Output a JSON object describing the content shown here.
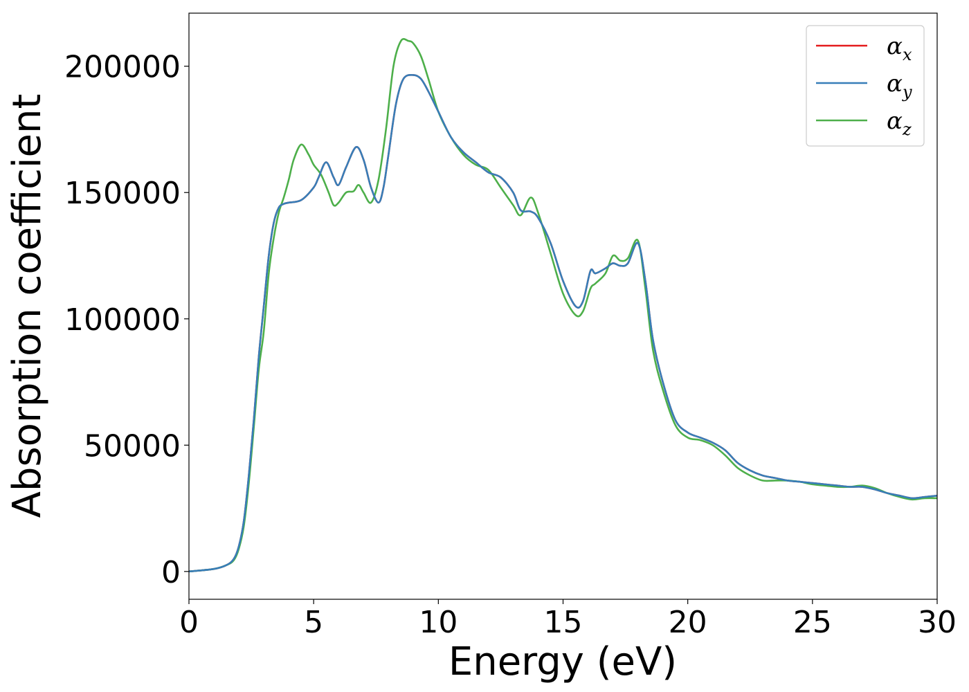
{
  "chart_data": {
    "type": "line",
    "title": "",
    "xlabel": "Energy (eV)",
    "ylabel": "Absorption coefficient",
    "xlim": [
      0,
      30
    ],
    "ylim": [
      -11000,
      221000
    ],
    "xticks": [
      0,
      5,
      10,
      15,
      20,
      25,
      30
    ],
    "xtick_labels": [
      "0",
      "5",
      "10",
      "15",
      "20",
      "25",
      "30"
    ],
    "yticks": [
      0,
      50000,
      100000,
      150000,
      200000
    ],
    "ytick_labels": [
      "0",
      "50000",
      "100000",
      "150000",
      "200000"
    ],
    "grid": false,
    "legend_position": "top-right",
    "series": [
      {
        "name": "αx",
        "legend_base": "α",
        "legend_sub": "x",
        "color": "#e41a1c",
        "x": [
          0,
          1,
          1.5,
          1.8,
          2.0,
          2.2,
          2.4,
          2.6,
          2.8,
          3.0,
          3.2,
          3.4,
          3.6,
          3.8,
          4.0,
          4.5,
          5.0,
          5.2,
          5.5,
          5.8,
          6.0,
          6.3,
          6.7,
          7.0,
          7.3,
          7.6,
          7.8,
          8.0,
          8.3,
          8.6,
          9.0,
          9.3,
          9.6,
          10.0,
          10.5,
          11.0,
          11.5,
          12.0,
          12.5,
          13.0,
          13.3,
          13.7,
          14.0,
          14.5,
          15.0,
          15.5,
          15.8,
          16.1,
          16.3,
          16.7,
          17.0,
          17.3,
          17.6,
          18.0,
          18.3,
          18.6,
          19.0,
          19.5,
          20.0,
          20.5,
          21.0,
          21.5,
          22.0,
          22.5,
          23.0,
          23.5,
          24.0,
          24.5,
          25.0,
          25.5,
          26.0,
          26.5,
          27.0,
          27.5,
          28.0,
          28.5,
          29.0,
          29.5,
          30.0
        ],
        "values": [
          0,
          1000,
          2500,
          5000,
          10000,
          20000,
          38000,
          60000,
          85000,
          105000,
          125000,
          138000,
          144000,
          145500,
          146000,
          147000,
          152000,
          156000,
          162000,
          156000,
          153000,
          160000,
          168000,
          163000,
          152000,
          146000,
          152000,
          165000,
          185000,
          195000,
          196500,
          195000,
          190000,
          182000,
          172000,
          166000,
          162000,
          158000,
          156000,
          150000,
          143000,
          142500,
          140000,
          130000,
          115000,
          105000,
          107000,
          119000,
          118000,
          120000,
          122000,
          121000,
          122000,
          130000,
          115000,
          92000,
          75000,
          60000,
          55000,
          53000,
          51000,
          48000,
          43000,
          40000,
          38000,
          37000,
          36000,
          35500,
          35000,
          34500,
          34000,
          33500,
          33500,
          32500,
          31000,
          30000,
          29000,
          29500,
          30000
        ]
      },
      {
        "name": "αy",
        "legend_base": "α",
        "legend_sub": "y",
        "color": "#377eb8",
        "x": [
          0,
          1,
          1.5,
          1.8,
          2.0,
          2.2,
          2.4,
          2.6,
          2.8,
          3.0,
          3.2,
          3.4,
          3.6,
          3.8,
          4.0,
          4.5,
          5.0,
          5.2,
          5.5,
          5.8,
          6.0,
          6.3,
          6.7,
          7.0,
          7.3,
          7.6,
          7.8,
          8.0,
          8.3,
          8.6,
          9.0,
          9.3,
          9.6,
          10.0,
          10.5,
          11.0,
          11.5,
          12.0,
          12.5,
          13.0,
          13.3,
          13.7,
          14.0,
          14.5,
          15.0,
          15.5,
          15.8,
          16.1,
          16.3,
          16.7,
          17.0,
          17.3,
          17.6,
          18.0,
          18.3,
          18.6,
          19.0,
          19.5,
          20.0,
          20.5,
          21.0,
          21.5,
          22.0,
          22.5,
          23.0,
          23.5,
          24.0,
          24.5,
          25.0,
          25.5,
          26.0,
          26.5,
          27.0,
          27.5,
          28.0,
          28.5,
          29.0,
          29.5,
          30.0
        ],
        "values": [
          0,
          1000,
          2500,
          5000,
          10000,
          20000,
          38000,
          60000,
          85000,
          105000,
          125000,
          138000,
          144000,
          145500,
          146000,
          147000,
          152000,
          156000,
          162000,
          156000,
          153000,
          160000,
          168000,
          163000,
          152000,
          146000,
          152000,
          165000,
          185000,
          195000,
          196500,
          195000,
          190000,
          182000,
          172000,
          166000,
          162000,
          158000,
          156000,
          150000,
          143000,
          142500,
          140000,
          130000,
          115000,
          105000,
          107000,
          119000,
          118000,
          120000,
          122000,
          121000,
          122000,
          130000,
          115000,
          92000,
          75000,
          60000,
          55000,
          53000,
          51000,
          48000,
          43000,
          40000,
          38000,
          37000,
          36000,
          35500,
          35000,
          34500,
          34000,
          33500,
          33500,
          32500,
          31000,
          30000,
          29000,
          29500,
          30000
        ]
      },
      {
        "name": "αz",
        "legend_base": "α",
        "legend_sub": "z",
        "color": "#4daf4a",
        "x": [
          0,
          1,
          1.5,
          1.8,
          2.0,
          2.2,
          2.4,
          2.6,
          2.8,
          3.0,
          3.2,
          3.4,
          3.6,
          3.8,
          4.0,
          4.2,
          4.5,
          4.8,
          5.0,
          5.3,
          5.6,
          5.8,
          6.0,
          6.3,
          6.6,
          6.8,
          7.0,
          7.3,
          7.6,
          7.9,
          8.2,
          8.5,
          8.8,
          9.0,
          9.3,
          9.6,
          10.0,
          10.5,
          11.0,
          11.5,
          12.0,
          12.5,
          13.0,
          13.3,
          13.7,
          14.0,
          14.5,
          15.0,
          15.5,
          15.8,
          16.1,
          16.3,
          16.7,
          17.0,
          17.3,
          17.6,
          18.0,
          18.3,
          18.6,
          19.0,
          19.5,
          20.0,
          20.5,
          21.0,
          21.5,
          22.0,
          22.5,
          23.0,
          23.5,
          24.0,
          24.5,
          25.0,
          25.5,
          26.0,
          26.5,
          27.0,
          27.5,
          28.0,
          28.5,
          29.0,
          29.5,
          30.0
        ],
        "values": [
          0,
          1000,
          2500,
          4500,
          9000,
          18000,
          35000,
          57000,
          80000,
          95000,
          118000,
          132000,
          142000,
          148000,
          155000,
          163000,
          169000,
          165000,
          161000,
          157000,
          150000,
          145000,
          146000,
          150000,
          150500,
          153000,
          150000,
          146000,
          155000,
          175000,
          200000,
          210000,
          210000,
          209000,
          204000,
          195000,
          182000,
          172000,
          165000,
          161000,
          159000,
          152000,
          145000,
          141000,
          148000,
          142000,
          126000,
          110000,
          101500,
          103000,
          112000,
          114000,
          118000,
          125000,
          123000,
          124000,
          131000,
          112000,
          88000,
          72000,
          58000,
          53000,
          52000,
          50000,
          46000,
          41000,
          38000,
          36000,
          36000,
          36000,
          35500,
          34500,
          34000,
          33500,
          33500,
          34000,
          33000,
          31000,
          29500,
          28500,
          29000,
          29000
        ]
      }
    ]
  }
}
